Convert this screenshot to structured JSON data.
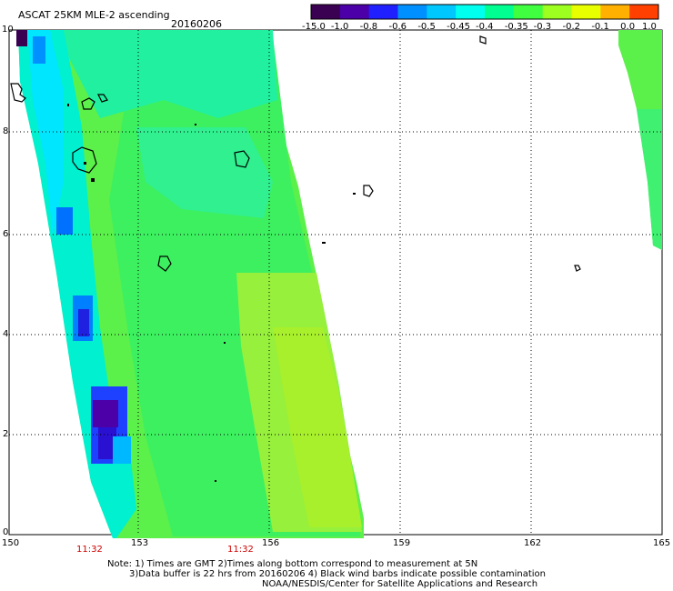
{
  "header": {
    "title": "ASCAT 25KM MLE-2 ascending",
    "date": "20160206"
  },
  "colorbar": {
    "labels": [
      "-15.0",
      "-1.0",
      "-0.8",
      "-0.6",
      "-0.5",
      "-0.45",
      "-0.4",
      "-0.35",
      "-0.3",
      "-0.2",
      "-0.1",
      "0.0",
      "1.0"
    ],
    "colors": [
      "#3a0052",
      "#4b00a8",
      "#2020ff",
      "#0090ff",
      "#00c8ff",
      "#00ffee",
      "#00ff90",
      "#40ff40",
      "#9cff20",
      "#e8ff00",
      "#ffb000",
      "#ff4000"
    ]
  },
  "axes": {
    "x_ticks": [
      "150",
      "153",
      "156",
      "159",
      "162",
      "165"
    ],
    "y_ticks": [
      "10",
      "8",
      "6",
      "4",
      "2",
      "0"
    ],
    "time_labels": [
      "11:32",
      "11:32"
    ]
  },
  "notes": {
    "line1": "Note: 1) Times are GMT 2)Times along bottom correspond to measurement at 5N",
    "line2": "3)Data buffer is 22 hrs from 20160206 4) Black wind barbs indicate possible contamination",
    "line3": "NOAA/NESDIS/Center for Satellite Applications and Research"
  }
}
